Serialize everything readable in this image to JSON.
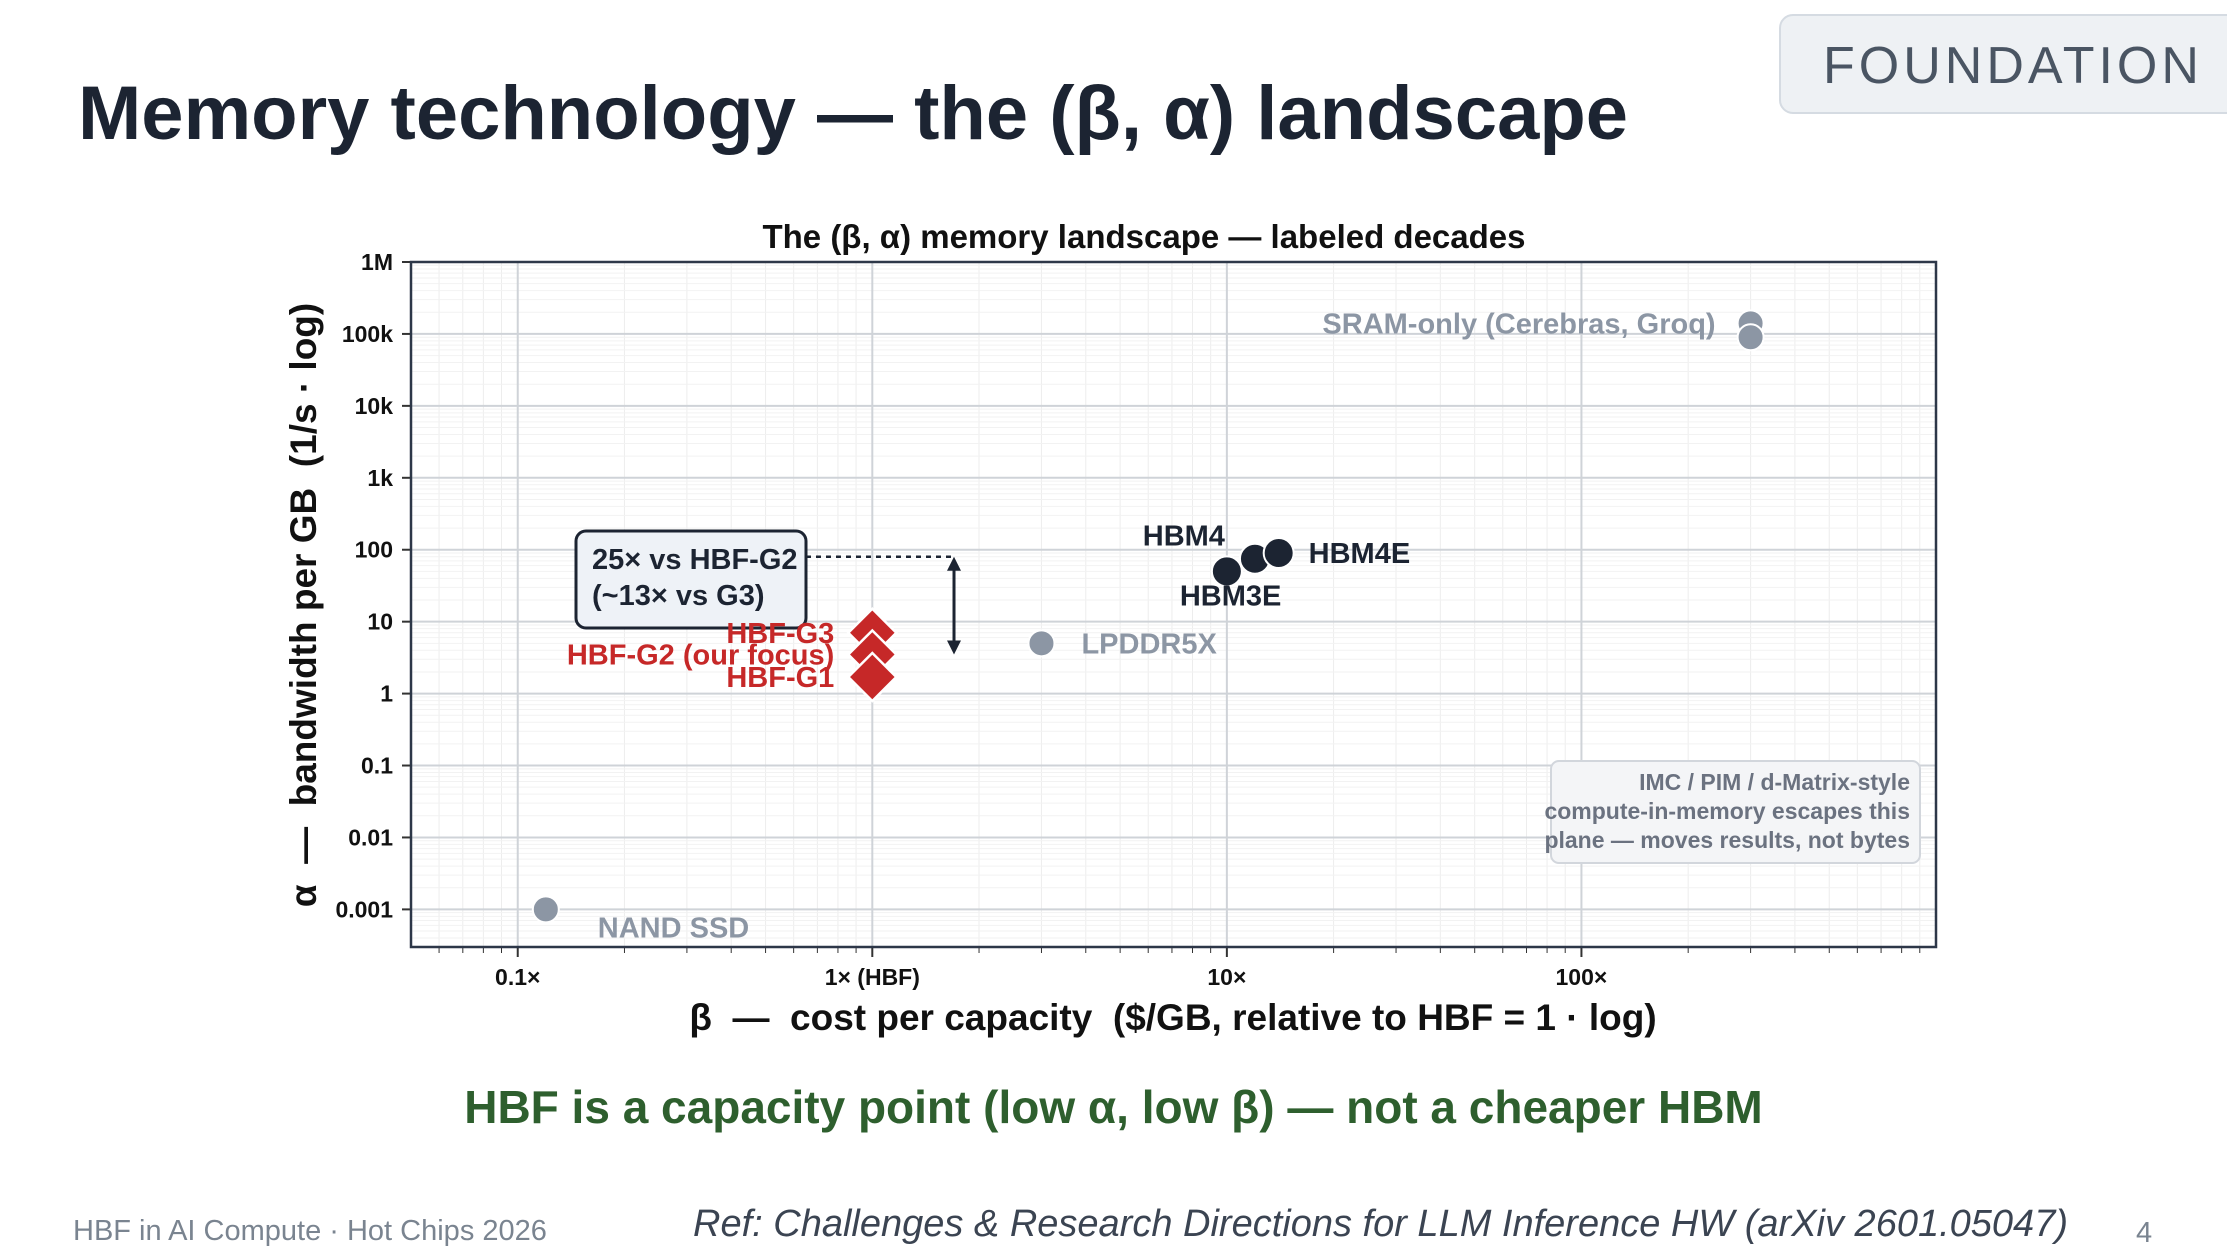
{
  "slide": {
    "title": "Memory technology — the (β, α) landscape",
    "section_badge": "FOUNDATION",
    "takeaway": "HBF is a capacity point (low α, low β) — not a cheaper HBM",
    "footer_left": "HBF in AI Compute · Hot Chips 2026",
    "reference": "Ref: Challenges & Research Directions for LLM Inference HW (arXiv 2601.05047)",
    "page_number": "4"
  },
  "chart_data": {
    "type": "scatter",
    "title": "The (β, α) memory landscape  —  labeled decades",
    "xlabel": "β  —  cost per capacity  ($/GB, relative to HBF = 1 · log)",
    "ylabel": "α  —  bandwidth per GB  (1/s · log)",
    "x_scale": "log",
    "y_scale": "log",
    "xlim": [
      0.05,
      1000
    ],
    "ylim": [
      0.0003,
      1000000
    ],
    "grid": true,
    "x_ticks": [
      {
        "value": 0.1,
        "label": "0.1×"
      },
      {
        "value": 1,
        "label": "1× (HBF)"
      },
      {
        "value": 10,
        "label": "10×"
      },
      {
        "value": 100,
        "label": "100×"
      }
    ],
    "y_ticks": [
      {
        "value": 0.001,
        "label": "0.001"
      },
      {
        "value": 0.01,
        "label": "0.01"
      },
      {
        "value": 0.1,
        "label": "0.1"
      },
      {
        "value": 1,
        "label": "1"
      },
      {
        "value": 10,
        "label": "10"
      },
      {
        "value": 100,
        "label": "100"
      },
      {
        "value": 1000,
        "label": "1k"
      },
      {
        "value": 10000,
        "label": "10k"
      },
      {
        "value": 100000,
        "label": "100k"
      },
      {
        "value": 1000000,
        "label": "1M"
      }
    ],
    "points": [
      {
        "label": "SRAM-only (Cerebras, Groq)",
        "x": 300,
        "y": 140000,
        "marker": "circle",
        "color": "#8c96a4",
        "label_color": "#8c96a4"
      },
      {
        "label": "SRAM-only (Cerebras, Groq)",
        "x": 300,
        "y": 90000,
        "marker": "circle",
        "color": "#8c96a4",
        "label_color": "#8c96a4"
      },
      {
        "label": "HBM4",
        "x": 12,
        "y": 75,
        "marker": "circle",
        "color": "#1c2432",
        "label_color": "#1c2432"
      },
      {
        "label": "HBM3E",
        "x": 10,
        "y": 50,
        "marker": "circle",
        "color": "#1c2432",
        "label_color": "#1c2432"
      },
      {
        "label": "HBM4E",
        "x": 14,
        "y": 90,
        "marker": "circle",
        "color": "#1c2432",
        "label_color": "#1c2432"
      },
      {
        "label": "LPDDR5X",
        "x": 3,
        "y": 5,
        "marker": "circle",
        "color": "#8c96a4",
        "label_color": "#8c96a4"
      },
      {
        "label": "NAND SSD",
        "x": 0.12,
        "y": 0.001,
        "marker": "circle",
        "color": "#8c96a4",
        "label_color": "#8c96a4"
      },
      {
        "label": "HBF-G3",
        "x": 1,
        "y": 7,
        "marker": "diamond",
        "color": "#c62828",
        "label_color": "#c62828"
      },
      {
        "label": "HBF-G2  (our focus)",
        "x": 1,
        "y": 3.5,
        "marker": "diamond",
        "color": "#c62828",
        "label_color": "#c62828"
      },
      {
        "label": "HBF-G1",
        "x": 1,
        "y": 1.7,
        "marker": "diamond",
        "color": "#c62828",
        "label_color": "#c62828"
      }
    ],
    "annotations": [
      {
        "text": "25× vs HBF-G2\n(~13× vs G3)",
        "arrow_x": 1.7,
        "arrow_y_from": 3.5,
        "arrow_y_to": 80
      },
      {
        "text": "IMC / PIM / d-Matrix-style\ncompute-in-memory escapes this\nplane — moves results, not bytes",
        "placement": "lower-right"
      }
    ]
  }
}
